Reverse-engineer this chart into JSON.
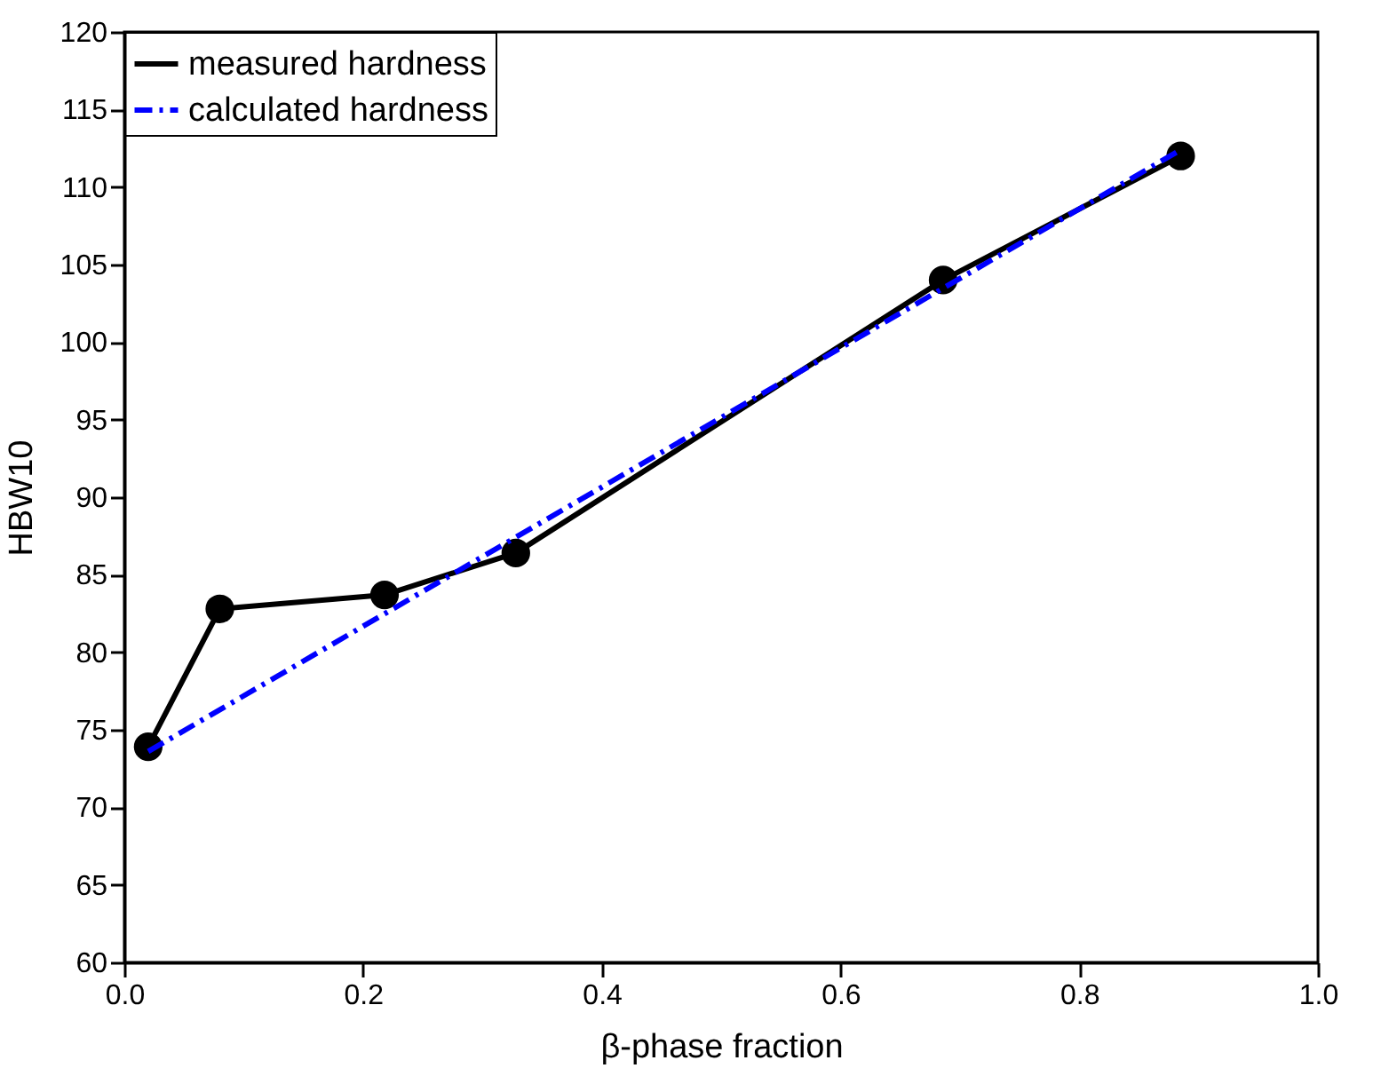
{
  "chart_data": {
    "type": "line",
    "xlabel": "β-phase fraction",
    "ylabel": "HBW10",
    "xlim": [
      0,
      1
    ],
    "xticks": [
      {
        "value": 0,
        "label": "0.0"
      },
      0.2,
      0.4,
      0.6,
      0.8,
      {
        "value": 1,
        "label": "1.0"
      }
    ],
    "ylim": [
      60,
      120
    ],
    "yticks": [
      60,
      65,
      70,
      75,
      80,
      85,
      90,
      95,
      100,
      105,
      110,
      115,
      120
    ],
    "grid": false,
    "legend": "top left",
    "series": [
      {
        "name": "measured hardness",
        "color": "#000000",
        "marker": "circle",
        "line_style": "solid",
        "x": [
          0.02,
          0.08,
          0.218,
          0.328,
          0.686,
          0.885
        ],
        "values": [
          73.9,
          82.8,
          83.7,
          86.4,
          104.0,
          112.0
        ]
      },
      {
        "name": "calculated hardness",
        "color": "#0000ff",
        "marker": "none",
        "line_style": "dashdot",
        "x": [
          0.02,
          0.885
        ],
        "values": [
          73.6,
          112.4
        ]
      }
    ]
  }
}
